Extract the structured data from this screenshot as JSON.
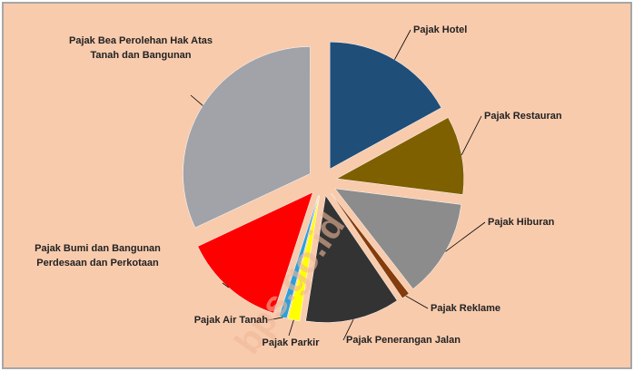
{
  "chart_data": {
    "type": "pie",
    "categories": [
      "Pajak Hotel",
      "Pajak Restauran",
      "Pajak Hiburan",
      "Pajak Reklame",
      "Pajak Penerangan Jalan",
      "Pajak Parkir",
      "Pajak Air Tanah",
      "Pajak Bumi dan Bangunan Perdesaan dan Perkotaan",
      "Pajak Bea Perolehan Hak Atas Tanah dan Bangunan"
    ],
    "values": [
      17,
      10,
      12.5,
      1,
      12,
      1.5,
      1,
      13,
      32
    ],
    "colors": [
      "#1f4e79",
      "#7f6000",
      "#8c8c8c",
      "#843c0c",
      "#333333",
      "#ffff00",
      "#2e9fd8",
      "#ff0000",
      "#a2a3a8"
    ],
    "watermark": "bps.go.id"
  }
}
